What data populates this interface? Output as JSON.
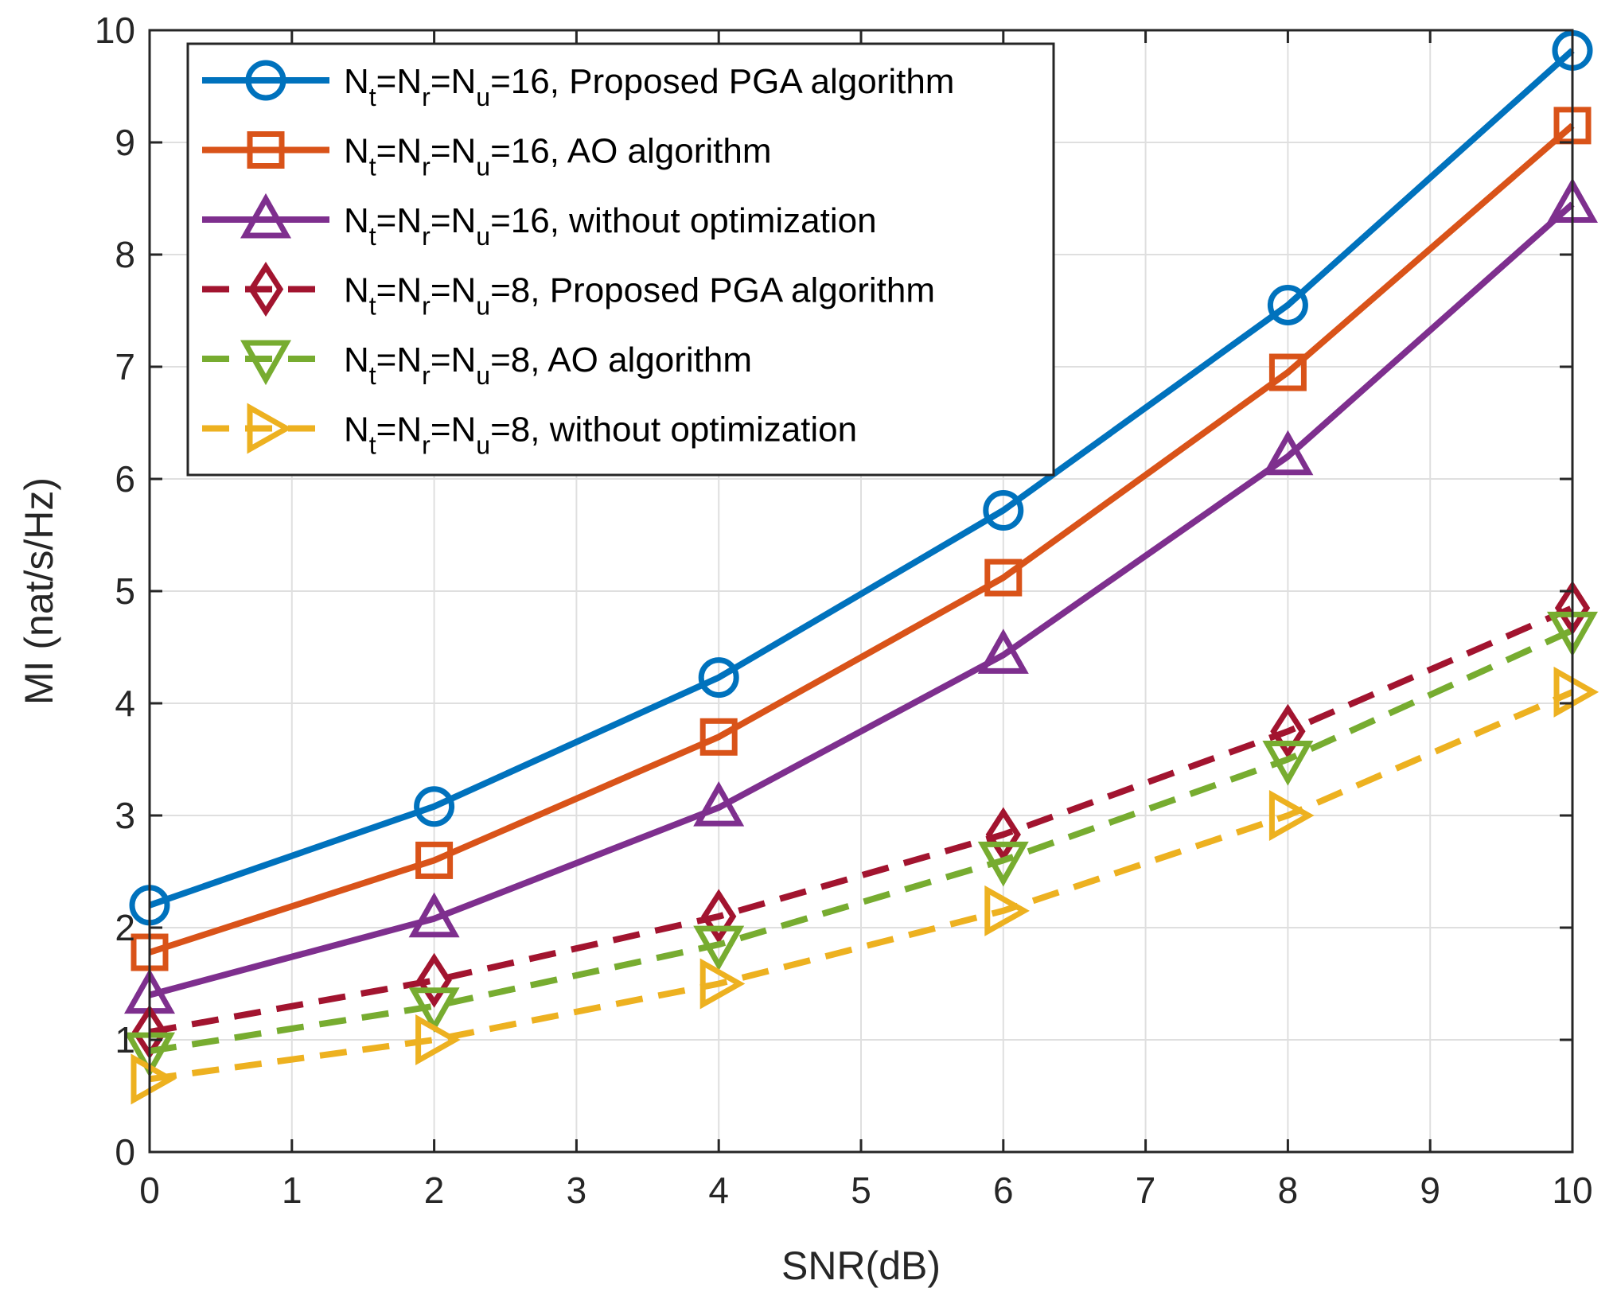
{
  "chart_data": {
    "type": "line",
    "xlabel": "SNR(dB)",
    "ylabel": "MI (nat/s/Hz)",
    "xlim": [
      0,
      10
    ],
    "ylim": [
      0,
      10
    ],
    "xticks": [
      "0",
      "1",
      "2",
      "3",
      "4",
      "5",
      "6",
      "7",
      "8",
      "9",
      "10"
    ],
    "yticks": [
      "0",
      "1",
      "2",
      "3",
      "4",
      "5",
      "6",
      "7",
      "8",
      "9",
      "10"
    ],
    "grid": true,
    "legend_position": "top-left",
    "x": [
      0,
      2,
      4,
      6,
      8,
      10
    ],
    "series": [
      {
        "name": "N_t=N_r=N_u=16, Proposed PGA algorithm",
        "values": [
          2.2,
          3.08,
          4.23,
          5.72,
          7.55,
          9.82
        ],
        "color": "#0072BD",
        "marker": "circle",
        "dashed": false
      },
      {
        "name": "N_t=N_r=N_u=16, AO algorithm",
        "values": [
          1.78,
          2.6,
          3.7,
          5.12,
          6.95,
          9.15
        ],
        "color": "#D95319",
        "marker": "square",
        "dashed": false
      },
      {
        "name": "N_t=N_r=N_u=16, without optimization",
        "values": [
          1.4,
          2.08,
          3.07,
          4.43,
          6.2,
          8.45
        ],
        "color": "#7E2F8E",
        "marker": "triangle-up",
        "dashed": false
      },
      {
        "name": "N_t=N_r=N_u=8, Proposed PGA algorithm",
        "values": [
          1.07,
          1.53,
          2.1,
          2.83,
          3.75,
          4.85
        ],
        "color": "#A2142F",
        "marker": "diamond",
        "dashed": true
      },
      {
        "name": "N_t=N_r=N_u=8, AO algorithm",
        "values": [
          0.9,
          1.3,
          1.85,
          2.6,
          3.5,
          4.65
        ],
        "color": "#77AC30",
        "marker": "triangle-down",
        "dashed": true
      },
      {
        "name": "N_t=N_r=N_u=8, without optimization",
        "values": [
          0.65,
          1.0,
          1.5,
          2.15,
          3.0,
          4.1
        ],
        "color": "#EDB120",
        "marker": "triangle-right",
        "dashed": true
      }
    ],
    "legend": [
      {
        "n1": "N",
        "s1": "t",
        "n2": "=N",
        "s2": "r",
        "n3": "=N",
        "s3": "u",
        "rest": "=16, Proposed PGA algorithm"
      },
      {
        "n1": "N",
        "s1": "t",
        "n2": "=N",
        "s2": "r",
        "n3": "=N",
        "s3": "u",
        "rest": "=16, AO algorithm"
      },
      {
        "n1": "N",
        "s1": "t",
        "n2": "=N",
        "s2": "r",
        "n3": "=N",
        "s3": "u",
        "rest": "=16, without optimization"
      },
      {
        "n1": "N",
        "s1": "t",
        "n2": "=N",
        "s2": "r",
        "n3": "=N",
        "s3": "u",
        "rest": "=8, Proposed PGA algorithm"
      },
      {
        "n1": "N",
        "s1": "t",
        "n2": "=N",
        "s2": "r",
        "n3": "=N",
        "s3": "u",
        "rest": "=8, AO algorithm"
      },
      {
        "n1": "N",
        "s1": "t",
        "n2": "=N",
        "s2": "r",
        "n3": "=N",
        "s3": "u",
        "rest": "=8, without optimization"
      }
    ]
  }
}
